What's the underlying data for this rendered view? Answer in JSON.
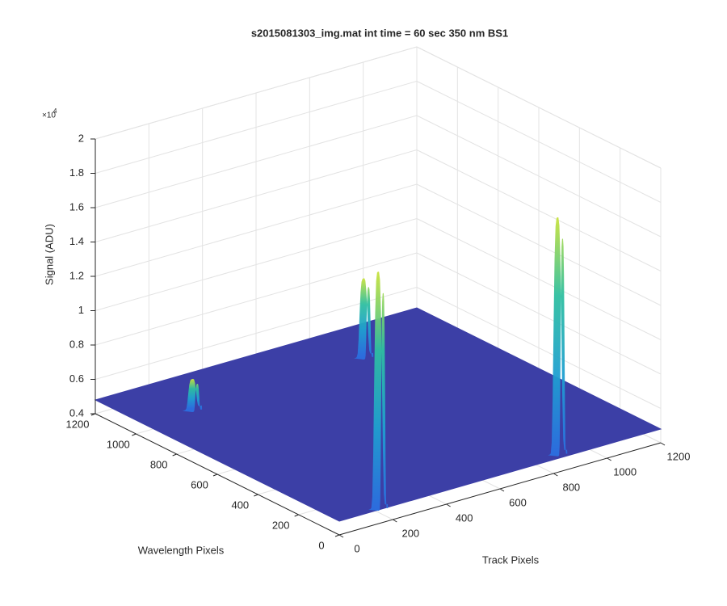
{
  "chart_data": {
    "type": "surface",
    "title": "s2015081303_img.mat int time = 60 sec  350 nm BS1",
    "xlabel": "Track Pixels",
    "ylabel": "Wavelength Pixels",
    "zlabel": "Signal (ADU)",
    "z_scale_base": "×10",
    "z_scale_exponent": "4",
    "xlim": [
      0,
      1200
    ],
    "ylim": [
      0,
      1200
    ],
    "zlim": [
      4000,
      20000
    ],
    "xticks": [
      0,
      200,
      400,
      600,
      800,
      1000,
      1200
    ],
    "yticks": [
      0,
      200,
      400,
      600,
      800,
      1000,
      1200
    ],
    "zticks": [
      {
        "value": 4000,
        "label": "0.4"
      },
      {
        "value": 6000,
        "label": "0.6"
      },
      {
        "value": 8000,
        "label": "0.8"
      },
      {
        "value": 10000,
        "label": "1"
      },
      {
        "value": 12000,
        "label": "1.2"
      },
      {
        "value": 14000,
        "label": "1.4"
      },
      {
        "value": 16000,
        "label": "1.6"
      },
      {
        "value": 18000,
        "label": "1.8"
      },
      {
        "value": 20000,
        "label": "2"
      }
    ],
    "grid": true,
    "floor_signal": 4800,
    "floor_color": "#3c3fa6",
    "colormap": [
      "#2b6fe0",
      "#1fa0d0",
      "#2fbfa0",
      "#c9e23c"
    ],
    "peaks": [
      {
        "track": 846,
        "wavelength": 996,
        "signal": 9300
      },
      {
        "track": 190,
        "wavelength": 974,
        "signal": 6500
      },
      {
        "track": 844,
        "wavelength": 39,
        "signal": 18500
      },
      {
        "track": 160,
        "wavelength": 20,
        "signal": 18500
      }
    ]
  }
}
